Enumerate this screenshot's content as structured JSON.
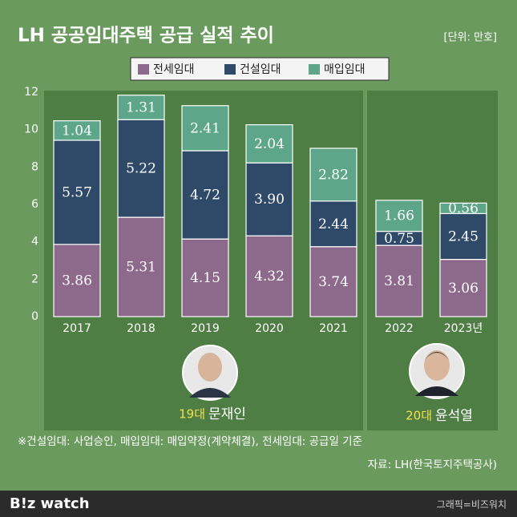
{
  "chart_data": {
    "type": "stacked_bar",
    "title": "LH 공공임대주택 공급 실적 추이",
    "unit": "[단위: 만호]",
    "categories": [
      "2017",
      "2018",
      "2019",
      "2020",
      "2021",
      "2022",
      "2023년"
    ],
    "series": [
      {
        "name": "전세임대",
        "color": "#8d6a8c",
        "values": [
          3.86,
          5.31,
          4.15,
          4.32,
          3.74,
          3.81,
          3.06
        ],
        "value_labels": [
          "3.86",
          "5.31",
          "4.15",
          "4.32",
          "3.74",
          "3.81",
          "3.06"
        ]
      },
      {
        "name": "건설임대",
        "color": "#2f4a68",
        "values": [
          5.57,
          5.22,
          4.72,
          3.9,
          2.44,
          0.75,
          2.45
        ],
        "value_labels": [
          "5.57",
          "5.22",
          "4.72",
          "3.90",
          "2.44",
          "0.75",
          "2.45"
        ]
      },
      {
        "name": "매입임대",
        "color": "#5ea68a",
        "values": [
          1.04,
          1.31,
          2.41,
          2.04,
          2.82,
          1.66,
          0.56
        ],
        "value_labels": [
          "1.04",
          "1.31",
          "2.41",
          "2.04",
          "2.82",
          "1.66",
          "0.56"
        ]
      }
    ],
    "ylim": [
      0,
      12
    ],
    "yticks": [
      0,
      2,
      4,
      6,
      8,
      10,
      12
    ],
    "periods": [
      {
        "number": "19대",
        "name": "문재인"
      },
      {
        "number": "20대",
        "name": "윤석열"
      }
    ],
    "note": "※건설임대: 사업승인, 매입임대: 매입약정(계약체결), 전세임대: 공급일 기준",
    "source": "자료: LH(한국토지주택공사)",
    "brand": "B!z watch",
    "credit": "그래픽=비즈워치"
  }
}
